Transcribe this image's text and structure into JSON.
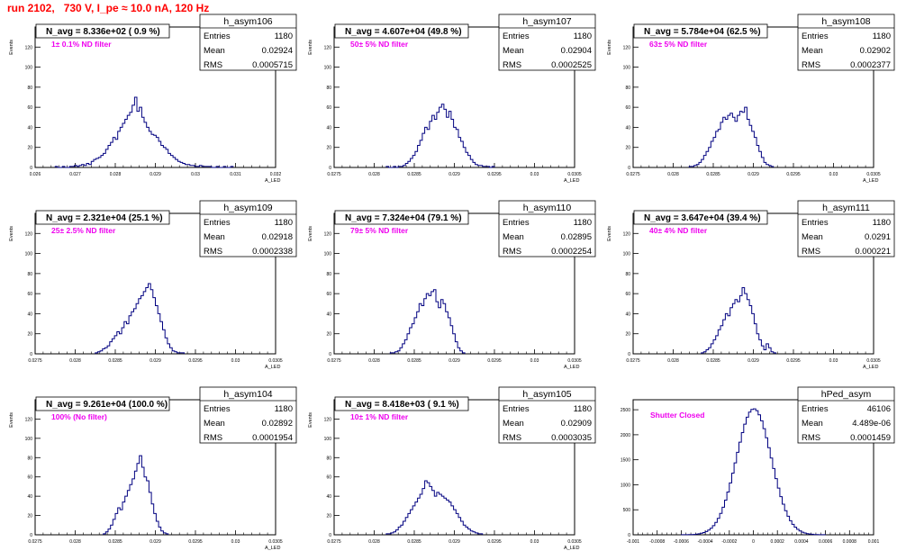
{
  "run_title": "run 2102,   730 V, I_pe ≈ 10.0 nA, 120 Hz",
  "chart_data": [
    {
      "type": "histogram",
      "hist_name": "h_asym106",
      "n_avg": "N_avg = 8.336e+02 ( 0.9 %)",
      "filter": "1± 0.1% ND filter",
      "stats": {
        "Entries": "1180",
        "Mean": "0.02924",
        "RMS": "0.0005715"
      },
      "xlim": [
        0.026,
        0.032
      ],
      "ylim": [
        0,
        140
      ],
      "ylabel": "Events",
      "xlabel": "A_LED",
      "xticks": [
        "0.026",
        "0.027",
        "0.028",
        "0.029",
        "0.03",
        "0.031",
        "0.032"
      ],
      "yticks": [
        "0",
        "20",
        "40",
        "60",
        "80",
        "100",
        "120"
      ],
      "bins_x0": 0.0265,
      "bin_width": 6e-05,
      "counts": [
        1,
        0,
        0,
        1,
        0,
        0,
        1,
        1,
        2,
        1,
        2,
        3,
        2,
        4,
        3,
        6,
        8,
        9,
        10,
        12,
        14,
        18,
        22,
        25,
        30,
        28,
        36,
        40,
        44,
        48,
        52,
        55,
        62,
        70,
        56,
        60,
        50,
        45,
        40,
        36,
        33,
        32,
        30,
        26,
        22,
        20,
        18,
        14,
        12,
        10,
        8,
        6,
        5,
        4,
        3,
        3,
        2,
        2,
        1,
        1,
        2,
        1,
        1,
        1,
        1,
        0,
        0,
        1,
        0,
        0,
        1,
        0,
        0,
        1
      ]
    },
    {
      "type": "histogram",
      "hist_name": "h_asym107",
      "n_avg": "N_avg = 4.607e+04 (49.8 %)",
      "filter": "50± 5% ND filter",
      "stats": {
        "Entries": "1180",
        "Mean": "0.02904",
        "RMS": "0.0002525"
      },
      "xlim": [
        0.0275,
        0.0305
      ],
      "ylim": [
        0,
        140
      ],
      "ylabel": "Events",
      "xlabel": "A_LED",
      "xticks": [
        "0.0275",
        "0.028",
        "0.0285",
        "0.029",
        "0.0295",
        "0.03",
        "0.0305"
      ],
      "yticks": [
        "0",
        "20",
        "40",
        "60",
        "80",
        "100",
        "120"
      ],
      "bins_x0": 0.02815,
      "bin_width": 3e-05,
      "counts": [
        1,
        0,
        0,
        1,
        0,
        1,
        1,
        2,
        4,
        6,
        9,
        12,
        16,
        22,
        27,
        34,
        40,
        38,
        46,
        52,
        48,
        55,
        60,
        63,
        58,
        50,
        56,
        48,
        40,
        38,
        30,
        26,
        20,
        15,
        12,
        8,
        5,
        3,
        2,
        2,
        1,
        1,
        1,
        0,
        1
      ]
    },
    {
      "type": "histogram",
      "hist_name": "h_asym108",
      "n_avg": "N_avg = 5.784e+04 (62.5 %)",
      "filter": "63± 5% ND filter",
      "stats": {
        "Entries": "1180",
        "Mean": "0.02902",
        "RMS": "0.0002377"
      },
      "xlim": [
        0.0275,
        0.0305
      ],
      "ylim": [
        0,
        140
      ],
      "ylabel": "Events",
      "xlabel": "A_LED",
      "xticks": [
        "0.0275",
        "0.028",
        "0.0285",
        "0.029",
        "0.0295",
        "0.03",
        "0.0305"
      ],
      "yticks": [
        "0",
        "20",
        "40",
        "60",
        "80",
        "100",
        "120"
      ],
      "bins_x0": 0.0282,
      "bin_width": 3e-05,
      "counts": [
        1,
        1,
        2,
        3,
        5,
        8,
        12,
        16,
        20,
        26,
        30,
        36,
        38,
        45,
        50,
        48,
        52,
        54,
        50,
        46,
        52,
        56,
        55,
        60,
        48,
        42,
        36,
        30,
        22,
        16,
        10,
        5,
        3,
        2,
        1
      ]
    },
    {
      "type": "histogram",
      "hist_name": "h_asym109",
      "n_avg": "N_avg = 2.321e+04 (25.1 %)",
      "filter": "25± 2.5% ND filter",
      "stats": {
        "Entries": "1180",
        "Mean": "0.02918",
        "RMS": "0.0002338"
      },
      "xlim": [
        0.0275,
        0.0305
      ],
      "ylim": [
        0,
        140
      ],
      "ylabel": "Events",
      "xlabel": "A_LED",
      "xticks": [
        "0.0275",
        "0.028",
        "0.0285",
        "0.029",
        "0.0295",
        "0.03",
        "0.0305"
      ],
      "yticks": [
        "0",
        "20",
        "40",
        "60",
        "80",
        "100",
        "120"
      ],
      "bins_x0": 0.02825,
      "bin_width": 3e-05,
      "counts": [
        1,
        2,
        3,
        5,
        6,
        8,
        12,
        15,
        18,
        22,
        20,
        26,
        32,
        30,
        38,
        42,
        45,
        50,
        55,
        58,
        62,
        66,
        70,
        64,
        56,
        48,
        40,
        32,
        24,
        16,
        10,
        6,
        3,
        2,
        1,
        1,
        1
      ]
    },
    {
      "type": "histogram",
      "hist_name": "h_asym110",
      "n_avg": "N_avg = 7.324e+04 (79.1 %)",
      "filter": "79± 5% ND filter",
      "stats": {
        "Entries": "1180",
        "Mean": "0.02895",
        "RMS": "0.0002254"
      },
      "xlim": [
        0.0275,
        0.0305
      ],
      "ylim": [
        0,
        140
      ],
      "ylabel": "Events",
      "xlabel": "A_LED",
      "xticks": [
        "0.0275",
        "0.028",
        "0.0285",
        "0.029",
        "0.0295",
        "0.03",
        "0.0305"
      ],
      "yticks": [
        "0",
        "20",
        "40",
        "60",
        "80",
        "100",
        "120"
      ],
      "bins_x0": 0.0282,
      "bin_width": 3e-05,
      "counts": [
        1,
        1,
        2,
        3,
        6,
        10,
        14,
        20,
        26,
        30,
        36,
        42,
        50,
        48,
        55,
        60,
        58,
        62,
        64,
        52,
        46,
        54,
        50,
        42,
        36,
        28,
        20,
        12,
        6,
        3,
        1
      ]
    },
    {
      "type": "histogram",
      "hist_name": "h_asym111",
      "n_avg": "N_avg = 3.647e+04 (39.4 %)",
      "filter": "40± 4% ND filter",
      "stats": {
        "Entries": "1180",
        "Mean": "0.0291",
        "RMS": "0.000221"
      },
      "xlim": [
        0.0275,
        0.0305
      ],
      "ylim": [
        0,
        140
      ],
      "ylabel": "Events",
      "xlabel": "A_LED",
      "xticks": [
        "0.0275",
        "0.028",
        "0.0285",
        "0.029",
        "0.0295",
        "0.03",
        "0.0305"
      ],
      "yticks": [
        "0",
        "20",
        "40",
        "60",
        "80",
        "100",
        "120"
      ],
      "bins_x0": 0.02835,
      "bin_width": 3e-05,
      "counts": [
        1,
        2,
        4,
        6,
        10,
        14,
        18,
        24,
        28,
        34,
        40,
        38,
        46,
        50,
        54,
        52,
        58,
        66,
        60,
        54,
        48,
        40,
        30,
        20,
        14,
        8,
        4,
        10,
        6,
        2,
        1
      ]
    },
    {
      "type": "histogram",
      "hist_name": "h_asym104",
      "n_avg": "N_avg = 9.261e+04 (100.0 %)",
      "filter": "100% (No filter)",
      "stats": {
        "Entries": "1180",
        "Mean": "0.02892",
        "RMS": "0.0001954"
      },
      "xlim": [
        0.0275,
        0.0305
      ],
      "ylim": [
        0,
        140
      ],
      "ylabel": "Events",
      "xlabel": "A_LED",
      "xticks": [
        "0.0275",
        "0.028",
        "0.0285",
        "0.029",
        "0.0295",
        "0.03",
        "0.0305"
      ],
      "yticks": [
        "0",
        "20",
        "40",
        "60",
        "80",
        "100",
        "120"
      ],
      "bins_x0": 0.02835,
      "bin_width": 3e-05,
      "counts": [
        1,
        3,
        6,
        10,
        16,
        22,
        28,
        26,
        34,
        40,
        46,
        52,
        58,
        66,
        74,
        82,
        70,
        60,
        56,
        44,
        32,
        22,
        14,
        8,
        4,
        2,
        1
      ]
    },
    {
      "type": "histogram",
      "hist_name": "h_asym105",
      "n_avg": "N_avg = 8.418e+03 ( 9.1 %)",
      "filter": "10± 1% ND filter",
      "stats": {
        "Entries": "1180",
        "Mean": "0.02909",
        "RMS": "0.0003035"
      },
      "xlim": [
        0.0275,
        0.0305
      ],
      "ylim": [
        0,
        140
      ],
      "ylabel": "Events",
      "xlabel": "A_LED",
      "xticks": [
        "0.0275",
        "0.028",
        "0.0285",
        "0.029",
        "0.0295",
        "0.03",
        "0.0305"
      ],
      "yticks": [
        "0",
        "20",
        "40",
        "60",
        "80",
        "100",
        "120"
      ],
      "bins_x0": 0.02815,
      "bin_width": 3e-05,
      "counts": [
        1,
        1,
        2,
        3,
        5,
        8,
        10,
        14,
        18,
        22,
        26,
        30,
        34,
        38,
        42,
        48,
        56,
        54,
        50,
        46,
        40,
        44,
        42,
        40,
        38,
        36,
        34,
        30,
        26,
        22,
        18,
        14,
        10,
        8,
        6,
        4,
        3,
        2,
        1,
        1
      ]
    },
    {
      "type": "histogram",
      "hist_name": "hPed_asym",
      "n_avg": "",
      "filter": "Shutter Closed",
      "stats": {
        "Entries": "46106",
        "Mean": "4.489e-06",
        "RMS": "0.0001459"
      },
      "xlim": [
        -0.001,
        0.001
      ],
      "ylim": [
        0,
        2700
      ],
      "ylabel": "",
      "xlabel": "",
      "xticks": [
        "-0.001",
        "-0.0008",
        "-0.0006",
        "-0.0004",
        "-0.0002",
        "0",
        "0.0002",
        "0.0004",
        "0.0006",
        "0.0008",
        "0.001"
      ],
      "yticks": [
        "0",
        "500",
        "1000",
        "1500",
        "2000",
        "2500"
      ],
      "bins_x0": -0.0006,
      "bin_width": 2e-05,
      "counts": []
    }
  ]
}
